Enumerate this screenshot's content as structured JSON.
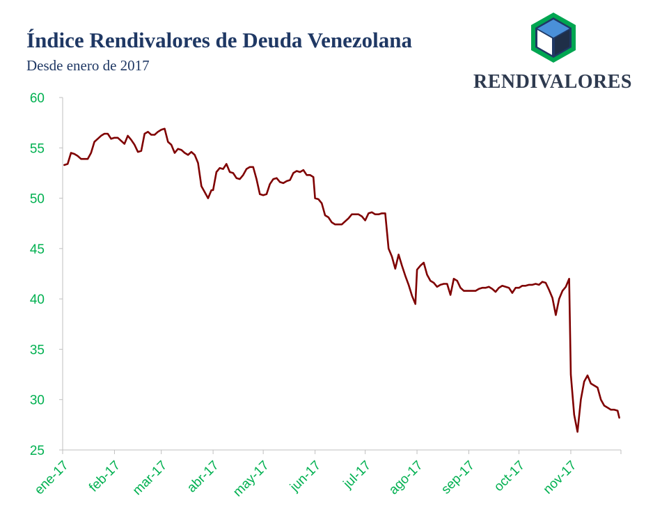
{
  "header": {
    "title": "Índice Rendivalores de Deuda Venezolana",
    "subtitle": "Desde enero de 2017"
  },
  "logo": {
    "text": "RENDIVALORES",
    "icon": "cube-hexagon-icon",
    "colors": {
      "outer": "#00a651",
      "inner": "#1f3864",
      "cube_top": "#4a90d9",
      "cube_left": "#ffffff",
      "cube_right": "#1f2f48"
    }
  },
  "chart_data": {
    "type": "line",
    "title": "Índice Rendivalores de Deuda Venezolana",
    "subtitle": "Desde enero de 2017",
    "xlabel": "",
    "ylabel": "",
    "ylim": [
      25,
      60
    ],
    "yticks": [
      25,
      30,
      35,
      40,
      45,
      50,
      55,
      60
    ],
    "xticks": [
      "ene-17",
      "feb-17",
      "mar-17",
      "abr-17",
      "may-17",
      "jun-17",
      "jul-17",
      "ago-17",
      "sep-17",
      "oct-17",
      "nov-17"
    ],
    "grid": false,
    "line_color": "#7f0000",
    "tick_color": "#00b050",
    "x": [
      "2017-01-02",
      "2017-01-04",
      "2017-01-06",
      "2017-01-08",
      "2017-01-10",
      "2017-01-12",
      "2017-01-14",
      "2017-01-16",
      "2017-01-18",
      "2017-01-20",
      "2017-01-22",
      "2017-01-24",
      "2017-01-26",
      "2017-01-28",
      "2017-01-30",
      "2017-02-01",
      "2017-02-03",
      "2017-02-05",
      "2017-02-07",
      "2017-02-09",
      "2017-02-11",
      "2017-02-13",
      "2017-02-15",
      "2017-02-17",
      "2017-02-19",
      "2017-02-21",
      "2017-02-23",
      "2017-02-25",
      "2017-02-27",
      "2017-03-01",
      "2017-03-03",
      "2017-03-05",
      "2017-03-07",
      "2017-03-09",
      "2017-03-11",
      "2017-03-13",
      "2017-03-15",
      "2017-03-17",
      "2017-03-19",
      "2017-03-21",
      "2017-03-23",
      "2017-03-25",
      "2017-03-27",
      "2017-03-29",
      "2017-03-31",
      "2017-04-01",
      "2017-04-03",
      "2017-04-05",
      "2017-04-07",
      "2017-04-09",
      "2017-04-11",
      "2017-04-13",
      "2017-04-15",
      "2017-04-17",
      "2017-04-19",
      "2017-04-21",
      "2017-04-23",
      "2017-04-25",
      "2017-04-27",
      "2017-04-29",
      "2017-05-01",
      "2017-05-03",
      "2017-05-05",
      "2017-05-07",
      "2017-05-09",
      "2017-05-11",
      "2017-05-13",
      "2017-05-15",
      "2017-05-17",
      "2017-05-19",
      "2017-05-21",
      "2017-05-23",
      "2017-05-25",
      "2017-05-27",
      "2017-05-29",
      "2017-05-31",
      "2017-06-01",
      "2017-06-03",
      "2017-06-05",
      "2017-06-07",
      "2017-06-09",
      "2017-06-11",
      "2017-06-13",
      "2017-06-15",
      "2017-06-17",
      "2017-06-19",
      "2017-06-21",
      "2017-06-23",
      "2017-06-25",
      "2017-06-27",
      "2017-06-29",
      "2017-07-01",
      "2017-07-03",
      "2017-07-05",
      "2017-07-07",
      "2017-07-09",
      "2017-07-11",
      "2017-07-13",
      "2017-07-15",
      "2017-07-17",
      "2017-07-19",
      "2017-07-21",
      "2017-07-23",
      "2017-07-25",
      "2017-07-27",
      "2017-07-29",
      "2017-07-31",
      "2017-08-01",
      "2017-08-03",
      "2017-08-05",
      "2017-08-07",
      "2017-08-09",
      "2017-08-11",
      "2017-08-13",
      "2017-08-15",
      "2017-08-17",
      "2017-08-19",
      "2017-08-21",
      "2017-08-23",
      "2017-08-25",
      "2017-08-27",
      "2017-08-29",
      "2017-08-31",
      "2017-09-01",
      "2017-09-03",
      "2017-09-05",
      "2017-09-07",
      "2017-09-09",
      "2017-09-11",
      "2017-09-13",
      "2017-09-15",
      "2017-09-17",
      "2017-09-19",
      "2017-09-21",
      "2017-09-23",
      "2017-09-25",
      "2017-09-27",
      "2017-09-29",
      "2017-10-01",
      "2017-10-03",
      "2017-10-05",
      "2017-10-07",
      "2017-10-09",
      "2017-10-11",
      "2017-10-13",
      "2017-10-15",
      "2017-10-17",
      "2017-10-19",
      "2017-10-21",
      "2017-10-23",
      "2017-10-25",
      "2017-10-27",
      "2017-10-29",
      "2017-10-31",
      "2017-11-01",
      "2017-11-03",
      "2017-11-05",
      "2017-11-07",
      "2017-11-09",
      "2017-11-11",
      "2017-11-13",
      "2017-11-15",
      "2017-11-17",
      "2017-11-19",
      "2017-11-21",
      "2017-11-23",
      "2017-11-25",
      "2017-11-27",
      "2017-11-29",
      "2017-11-30"
    ],
    "series": [
      {
        "values": [
          53.3,
          53.4,
          54.5,
          54.4,
          54.2,
          53.9,
          53.9,
          53.9,
          54.5,
          55.6,
          55.9,
          56.2,
          56.4,
          56.4,
          55.9,
          56.0,
          56.0,
          55.7,
          55.4,
          56.2,
          55.8,
          55.3,
          54.6,
          54.7,
          56.4,
          56.6,
          56.3,
          56.3,
          56.6,
          56.8,
          56.9,
          55.6,
          55.3,
          54.5,
          54.9,
          54.8,
          54.5,
          54.3,
          54.6,
          54.3,
          53.5,
          51.2,
          50.6,
          50.0,
          50.8,
          50.8,
          52.6,
          53.0,
          52.9,
          53.4,
          52.6,
          52.5,
          52.0,
          51.9,
          52.3,
          52.9,
          53.1,
          53.1,
          51.9,
          50.4,
          50.3,
          50.4,
          51.4,
          51.9,
          52.0,
          51.6,
          51.5,
          51.7,
          51.8,
          52.5,
          52.7,
          52.6,
          52.8,
          52.3,
          52.3,
          52.1,
          50.0,
          49.9,
          49.5,
          48.3,
          48.1,
          47.6,
          47.4,
          47.4,
          47.4,
          47.7,
          48.0,
          48.4,
          48.4,
          48.4,
          48.2,
          47.8,
          48.5,
          48.6,
          48.4,
          48.4,
          48.5,
          48.5,
          45.0,
          44.2,
          43.0,
          44.4,
          43.3,
          42.3,
          41.4,
          40.3,
          39.5,
          42.9,
          43.3,
          43.6,
          42.4,
          41.8,
          41.6,
          41.2,
          41.4,
          41.5,
          41.5,
          40.4,
          42.0,
          41.8,
          41.1,
          40.8,
          40.8,
          40.8,
          40.8,
          40.8,
          41.0,
          41.1,
          41.1,
          41.2,
          41.0,
          40.7,
          41.1,
          41.3,
          41.2,
          41.1,
          40.6,
          41.1,
          41.1,
          41.3,
          41.3,
          41.4,
          41.4,
          41.5,
          41.4,
          41.7,
          41.6,
          40.9,
          40.1,
          38.4,
          40.0,
          40.8,
          41.2,
          42.0,
          32.5,
          28.5,
          26.8,
          30.0,
          31.8,
          32.4,
          31.6,
          31.4,
          31.2,
          30.0,
          29.4,
          29.2,
          29.0,
          29.0,
          28.9,
          28.2
        ]
      }
    ]
  }
}
